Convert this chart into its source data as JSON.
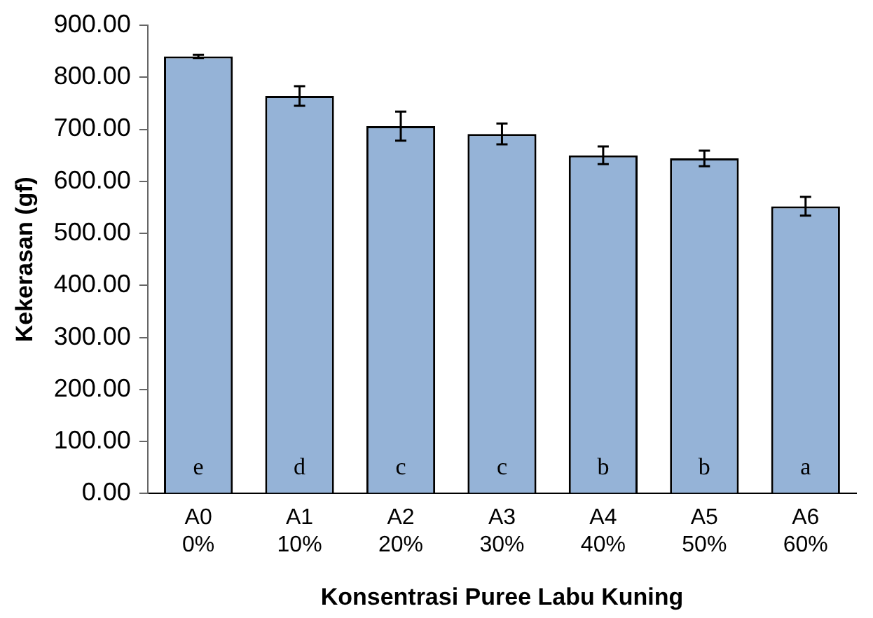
{
  "chart_data": {
    "type": "bar",
    "xlabel": "Konsentrasi Puree Labu Kuning",
    "ylabel": "Kekerasan (gf)",
    "categories": [
      "A0\n0%",
      "A1\n10%",
      "A2\n20%",
      "A3\n30%",
      "A4\n40%",
      "A5\n50%",
      "A6\n60%"
    ],
    "values": [
      840,
      764,
      706,
      691,
      650,
      644,
      552
    ],
    "errors": [
      3,
      19,
      28,
      20,
      17,
      15,
      18
    ],
    "color": "#95b3d7",
    "ylim": [
      0,
      900
    ],
    "yticks": [
      {
        "value": 0,
        "label": "0.00"
      },
      {
        "value": 100,
        "label": "100.00"
      },
      {
        "value": 200,
        "label": "200.00"
      },
      {
        "value": 300,
        "label": "300.00"
      },
      {
        "value": 400,
        "label": "400.00"
      },
      {
        "value": 500,
        "label": "500.00"
      },
      {
        "value": 600,
        "label": "600.00"
      },
      {
        "value": 700,
        "label": "700.00"
      },
      {
        "value": 800,
        "label": "800.00"
      },
      {
        "value": 900,
        "label": "900.00"
      }
    ],
    "grid": false,
    "legend": false,
    "annotations": [
      "e",
      "d",
      "c",
      "c",
      "b",
      "b",
      "a"
    ]
  }
}
